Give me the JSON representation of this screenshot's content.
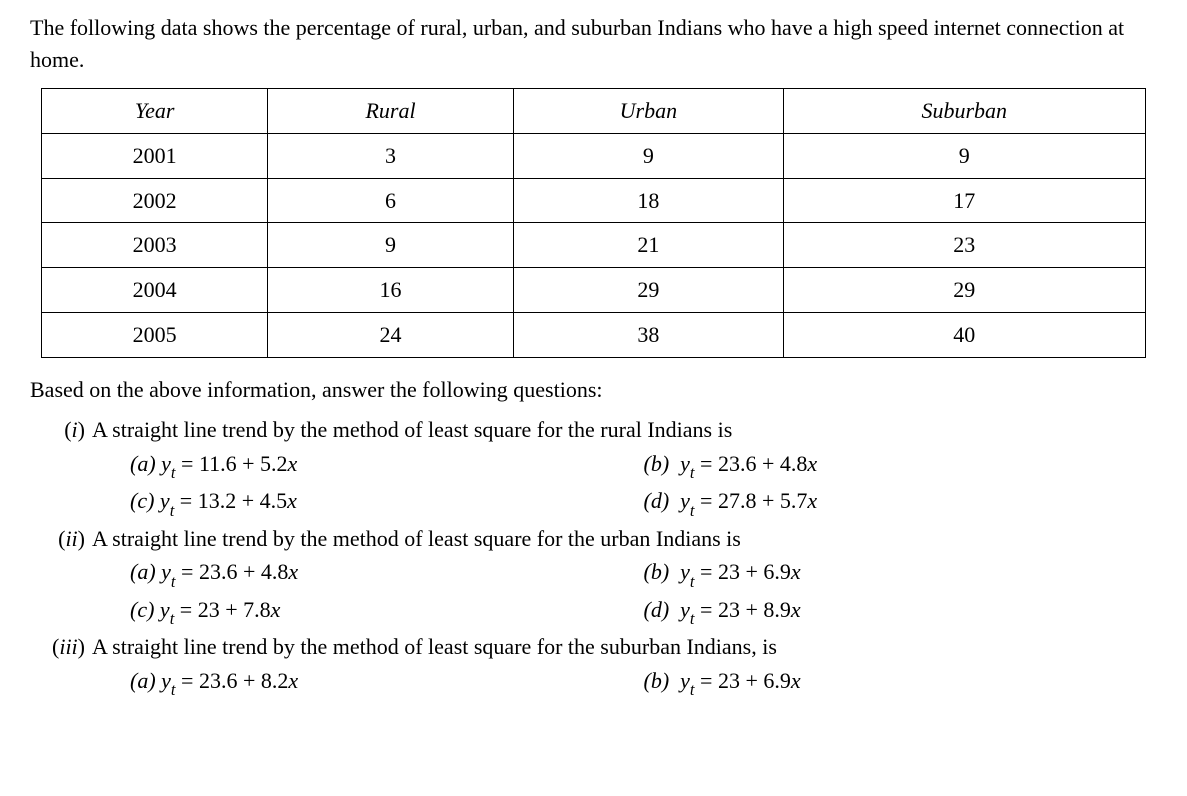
{
  "intro_line1": "The following data shows the percentage of rural, urban, and suburban Indians who have a",
  "intro_line2": "high speed internet connection at home.",
  "table": {
    "headers": [
      "Year",
      "Rural",
      "Urban",
      "Suburban"
    ],
    "rows": [
      [
        "2001",
        "3",
        "9",
        "9"
      ],
      [
        "2002",
        "6",
        "18",
        "17"
      ],
      [
        "2003",
        "9",
        "21",
        "23"
      ],
      [
        "2004",
        "16",
        "29",
        "29"
      ],
      [
        "2005",
        "24",
        "38",
        "40"
      ]
    ]
  },
  "after_table": "Based on the above information, answer the following questions:",
  "questions": {
    "q1": {
      "roman": "(i)",
      "text": "A straight line trend by the method of least square for the rural Indians is",
      "options": {
        "a": {
          "label": "(a)",
          "const": "11.6",
          "coef": "5.2"
        },
        "b": {
          "label": "(b)",
          "const": "23.6",
          "coef": "4.8"
        },
        "c": {
          "label": "(c)",
          "const": "13.2",
          "coef": "4.5"
        },
        "d": {
          "label": "(d)",
          "const": "27.8",
          "coef": "5.7"
        }
      }
    },
    "q2": {
      "roman": "(ii)",
      "text": "A straight line trend by the method of least square for the urban Indians is",
      "options": {
        "a": {
          "label": "(a)",
          "const": "23.6",
          "coef": "4.8"
        },
        "b": {
          "label": "(b)",
          "const": "23",
          "coef": "6.9"
        },
        "c": {
          "label": "(c)",
          "const": "23",
          "coef": "7.8"
        },
        "d": {
          "label": "(d)",
          "const": "23",
          "coef": "8.9"
        }
      }
    },
    "q3": {
      "roman": "(iii)",
      "text": "A straight line trend by the method of least square for the suburban Indians, is",
      "options": {
        "a": {
          "label": "(a)",
          "const": "23.6",
          "coef": "8.2"
        },
        "b": {
          "label": "(b)",
          "const": "23",
          "coef": "6.9"
        }
      }
    }
  }
}
